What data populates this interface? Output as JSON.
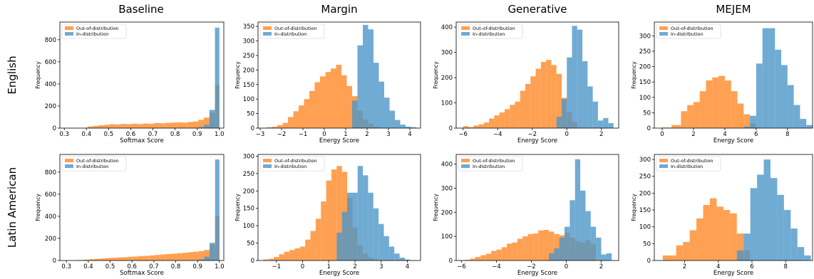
{
  "colors": {
    "ood": "#ffa052",
    "ind": "#4c96c8",
    "overlap": "#5e7f84"
  },
  "column_titles": [
    "Baseline",
    "Margin",
    "Generative",
    "MEJEM"
  ],
  "row_titles": [
    "English",
    "Latin American"
  ],
  "chart_data": [
    {
      "type": "bar",
      "subtype": "histogram",
      "panel": "English / Baseline",
      "xlabel": "Softmax Score",
      "ylabel": "Frequency",
      "xlim": [
        0.28,
        1.02
      ],
      "ylim": [
        0,
        960
      ],
      "xticks": [
        0.3,
        0.4,
        0.5,
        0.6,
        0.7,
        0.8,
        0.9,
        1.0
      ],
      "xtick_labels": [
        "0.3",
        "0.4",
        "0.5",
        "0.6",
        "0.7",
        "0.8",
        "0.9",
        "1.0"
      ],
      "yticks": [
        0,
        200,
        400,
        600,
        800
      ],
      "legend": [
        "Out-of-distribution",
        "In-distribution"
      ],
      "legend_position": "top-left",
      "series": [
        {
          "name": "Out-of-distribution",
          "edges": [
            0.38,
            0.405,
            0.43,
            0.455,
            0.48,
            0.505,
            0.53,
            0.555,
            0.58,
            0.605,
            0.63,
            0.655,
            0.68,
            0.705,
            0.73,
            0.755,
            0.78,
            0.805,
            0.83,
            0.855,
            0.88,
            0.905,
            0.93,
            0.955,
            0.98,
            1.0
          ],
          "values": [
            3,
            15,
            20,
            26,
            30,
            35,
            33,
            38,
            36,
            40,
            37,
            42,
            40,
            46,
            44,
            48,
            50,
            52,
            50,
            55,
            60,
            75,
            95,
            140,
            390
          ]
        },
        {
          "name": "In-distribution",
          "edges": [
            0.905,
            0.93,
            0.955,
            0.98,
            1.0
          ],
          "values": [
            10,
            30,
            165,
            910
          ]
        }
      ]
    },
    {
      "type": "bar",
      "subtype": "histogram",
      "panel": "English / Margin",
      "xlabel": "Energy Score",
      "ylabel": "Frequency",
      "xlim": [
        -3.1,
        4.5
      ],
      "ylim": [
        0,
        365
      ],
      "xticks": [
        -3,
        -2,
        -1,
        0,
        1,
        2,
        3,
        4
      ],
      "xtick_labels": [
        "−3",
        "−2",
        "−1",
        "0",
        "1",
        "2",
        "3",
        "4"
      ],
      "yticks": [
        0,
        50,
        100,
        150,
        200,
        250,
        300,
        350
      ],
      "legend": [
        "Out-of-distribution",
        "In-distribution"
      ],
      "legend_position": "top-left",
      "series": [
        {
          "name": "Out-of-distribution",
          "edges": [
            -2.7,
            -2.45,
            -2.2,
            -1.95,
            -1.7,
            -1.45,
            -1.2,
            -0.95,
            -0.7,
            -0.45,
            -0.2,
            0.05,
            0.3,
            0.55,
            0.8,
            1.05,
            1.3,
            1.55,
            1.8,
            2.05,
            2.3,
            2.55
          ],
          "values": [
            3,
            5,
            10,
            18,
            38,
            58,
            78,
            100,
            128,
            158,
            178,
            193,
            205,
            218,
            182,
            145,
            110,
            60,
            30,
            15,
            5
          ]
        },
        {
          "name": "In-distribution",
          "edges": [
            1.3,
            1.55,
            1.8,
            2.05,
            2.3,
            2.55,
            2.8,
            3.05,
            3.3,
            3.55,
            3.8,
            4.05,
            4.3
          ],
          "values": [
            95,
            285,
            355,
            340,
            225,
            160,
            105,
            60,
            28,
            12,
            5,
            3
          ]
        }
      ]
    },
    {
      "type": "bar",
      "subtype": "histogram",
      "panel": "English / Generative",
      "xlabel": "Energy Score",
      "ylabel": "Frequency",
      "xlim": [
        -6.4,
        3.0
      ],
      "ylim": [
        0,
        420
      ],
      "xticks": [
        -6,
        -4,
        -2,
        0,
        2
      ],
      "xtick_labels": [
        "−6",
        "−4",
        "−2",
        "0",
        "2"
      ],
      "yticks": [
        0,
        100,
        200,
        300,
        400
      ],
      "legend": [
        "Out-of-distribution",
        "In-distribution"
      ],
      "legend_position": "top-left",
      "series": [
        {
          "name": "Out-of-distribution",
          "edges": [
            -6.0,
            -5.7,
            -5.4,
            -5.1,
            -4.8,
            -4.5,
            -4.2,
            -3.9,
            -3.6,
            -3.3,
            -3.0,
            -2.7,
            -2.4,
            -2.1,
            -1.8,
            -1.5,
            -1.2,
            -0.9,
            -0.6,
            -0.3,
            0.0,
            0.3,
            0.6
          ],
          "values": [
            8,
            4,
            10,
            15,
            22,
            38,
            50,
            62,
            75,
            92,
            105,
            148,
            175,
            205,
            235,
            262,
            270,
            250,
            215,
            120,
            65,
            25
          ]
        },
        {
          "name": "In-distribution",
          "edges": [
            -0.6,
            -0.3,
            0.0,
            0.3,
            0.6,
            0.9,
            1.2,
            1.5,
            1.8,
            2.1,
            2.4,
            2.7
          ],
          "values": [
            45,
            115,
            280,
            405,
            390,
            265,
            165,
            105,
            30,
            40,
            20
          ]
        }
      ]
    },
    {
      "type": "bar",
      "subtype": "histogram",
      "panel": "English / MEJEM",
      "xlabel": "Energy Score",
      "ylabel": "Frequency",
      "xlim": [
        -0.5,
        9.6
      ],
      "ylim": [
        0,
        345
      ],
      "xticks": [
        0,
        2,
        4,
        6,
        8
      ],
      "xtick_labels": [
        "0",
        "2",
        "4",
        "6",
        "8"
      ],
      "yticks": [
        0,
        50,
        100,
        150,
        200,
        250,
        300
      ],
      "legend": [
        "Out-of-distribution",
        "In-distribution"
      ],
      "legend_position": "top-left",
      "series": [
        {
          "name": "Out-of-distribution",
          "edges": [
            0,
            0.6,
            1.2,
            1.6,
            2.0,
            2.4,
            2.8,
            3.2,
            3.6,
            4.0,
            4.4,
            4.8,
            5.2,
            5.6,
            6.0
          ],
          "values": [
            2,
            10,
            55,
            75,
            85,
            120,
            155,
            165,
            170,
            155,
            120,
            80,
            45,
            15
          ]
        },
        {
          "name": "In-distribution",
          "edges": [
            5.2,
            5.6,
            6.0,
            6.4,
            6.8,
            7.2,
            7.6,
            8.0,
            8.4,
            8.8,
            9.2,
            9.6
          ],
          "values": [
            5,
            40,
            210,
            325,
            325,
            255,
            205,
            140,
            75,
            30,
            10
          ]
        }
      ]
    },
    {
      "type": "bar",
      "subtype": "histogram",
      "panel": "Latin American / Baseline",
      "xlabel": "Softmax Score",
      "ylabel": "Frequency",
      "xlim": [
        0.27,
        1.02
      ],
      "ylim": [
        0,
        960
      ],
      "xticks": [
        0.3,
        0.4,
        0.5,
        0.6,
        0.7,
        0.8,
        0.9,
        1.0
      ],
      "xtick_labels": [
        "0.3",
        "0.4",
        "0.5",
        "0.6",
        "0.7",
        "0.8",
        "0.9",
        "1.0"
      ],
      "yticks": [
        0,
        200,
        400,
        600,
        800
      ],
      "legend": [
        "Out-of-distribution",
        "In-distribution"
      ],
      "legend_position": "top-left",
      "series": [
        {
          "name": "Out-of-distribution",
          "edges": [
            0.33,
            0.355,
            0.38,
            0.405,
            0.43,
            0.455,
            0.48,
            0.505,
            0.53,
            0.555,
            0.58,
            0.605,
            0.63,
            0.655,
            0.68,
            0.705,
            0.73,
            0.755,
            0.78,
            0.805,
            0.83,
            0.855,
            0.88,
            0.905,
            0.93,
            0.955,
            0.98,
            1.0
          ],
          "values": [
            3,
            5,
            8,
            12,
            15,
            18,
            22,
            25,
            28,
            30,
            34,
            36,
            40,
            42,
            46,
            50,
            55,
            58,
            62,
            66,
            70,
            75,
            80,
            85,
            95,
            145,
            400
          ]
        },
        {
          "name": "In-distribution",
          "edges": [
            0.905,
            0.93,
            0.955,
            0.98,
            1.0
          ],
          "values": [
            10,
            35,
            160,
            915
          ]
        }
      ]
    },
    {
      "type": "bar",
      "subtype": "histogram",
      "panel": "Latin American / Margin",
      "xlabel": "Energy Score",
      "ylabel": "Frequency",
      "xlim": [
        -1.7,
        4.5
      ],
      "ylim": [
        0,
        305
      ],
      "xticks": [
        -1,
        0,
        1,
        2,
        3,
        4
      ],
      "xtick_labels": [
        "−1",
        "0",
        "1",
        "2",
        "3",
        "4"
      ],
      "yticks": [
        0,
        50,
        100,
        150,
        200,
        250,
        300
      ],
      "legend": [
        "Out-of-distribution",
        "In-distribution"
      ],
      "legend_position": "top-left",
      "series": [
        {
          "name": "Out-of-distribution",
          "edges": [
            -1.5,
            -1.3,
            -1.1,
            -0.9,
            -0.7,
            -0.5,
            -0.3,
            -0.1,
            0.1,
            0.3,
            0.5,
            0.7,
            0.9,
            1.1,
            1.3,
            1.5,
            1.7,
            1.9,
            2.1,
            2.3,
            2.5,
            2.7,
            2.9
          ],
          "values": [
            3,
            5,
            10,
            18,
            25,
            30,
            35,
            40,
            60,
            85,
            120,
            170,
            230,
            262,
            272,
            255,
            180,
            95,
            45,
            20,
            8,
            3
          ]
        },
        {
          "name": "In-distribution",
          "edges": [
            1.3,
            1.5,
            1.7,
            2.1,
            2.3,
            2.5,
            2.7,
            2.9,
            3.1,
            3.3,
            3.5,
            3.7,
            3.9,
            4.1
          ],
          "values": [
            80,
            140,
            195,
            272,
            245,
            195,
            150,
            105,
            70,
            40,
            20,
            8,
            3
          ]
        }
      ]
    },
    {
      "type": "bar",
      "subtype": "histogram",
      "panel": "Latin American / Generative",
      "xlabel": "Energy Score",
      "ylabel": "Frequency",
      "xlim": [
        -6.3,
        3.0
      ],
      "ylim": [
        0,
        440
      ],
      "xticks": [
        -6,
        -4,
        -2,
        0,
        2
      ],
      "xtick_labels": [
        "−6",
        "−4",
        "−2",
        "0",
        "2"
      ],
      "yticks": [
        0,
        100,
        200,
        300,
        400
      ],
      "legend": [
        "Out-of-distribution",
        "In-distribution"
      ],
      "legend_position": "top-left",
      "series": [
        {
          "name": "Out-of-distribution",
          "edges": [
            -5.8,
            -5.5,
            -5.2,
            -4.9,
            -4.6,
            -4.3,
            -4.0,
            -3.7,
            -3.4,
            -3.1,
            -2.8,
            -2.5,
            -2.2,
            -1.9,
            -1.6,
            -1.3,
            -1.0,
            -0.7,
            -0.4,
            -0.1,
            0.2,
            0.5,
            0.8,
            1.1,
            1.4,
            1.7
          ],
          "values": [
            3,
            8,
            15,
            22,
            28,
            40,
            45,
            55,
            70,
            75,
            90,
            100,
            110,
            112,
            125,
            127,
            120,
            110,
            105,
            115,
            95,
            80,
            75,
            85,
            70
          ]
        },
        {
          "name": "In-distribution",
          "edges": [
            -1.0,
            -0.7,
            -0.4,
            -0.1,
            0.2,
            0.5,
            0.8,
            1.1,
            1.4,
            1.7,
            2.0,
            2.3,
            2.6
          ],
          "values": [
            30,
            50,
            95,
            140,
            250,
            420,
            290,
            205,
            140,
            95,
            25,
            30
          ]
        }
      ]
    },
    {
      "type": "bar",
      "subtype": "histogram",
      "panel": "Latin American / MEJEM",
      "xlabel": "Energy Score",
      "ylabel": "Frequency",
      "xlim": [
        0.2,
        9.6
      ],
      "ylim": [
        0,
        315
      ],
      "xticks": [
        2,
        4,
        6,
        8
      ],
      "xtick_labels": [
        "2",
        "4",
        "6",
        "8"
      ],
      "yticks": [
        0,
        50,
        100,
        150,
        200,
        250,
        300
      ],
      "legend": [
        "Out-of-distribution",
        "In-distribution"
      ],
      "legend_position": "top-left",
      "series": [
        {
          "name": "Out-of-distribution",
          "edges": [
            0.7,
            1.1,
            1.5,
            1.9,
            2.3,
            2.7,
            3.1,
            3.5,
            3.9,
            4.3,
            4.7,
            5.1,
            5.5,
            5.9
          ],
          "values": [
            15,
            15,
            45,
            55,
            90,
            125,
            165,
            185,
            160,
            150,
            140,
            80,
            30
          ]
        },
        {
          "name": "In-distribution",
          "edges": [
            5.1,
            5.5,
            5.9,
            6.3,
            6.7,
            7.1,
            7.5,
            7.9,
            8.3,
            8.7,
            9.1,
            9.5
          ],
          "values": [
            30,
            80,
            215,
            255,
            300,
            245,
            195,
            150,
            95,
            40,
            15
          ]
        }
      ]
    }
  ]
}
